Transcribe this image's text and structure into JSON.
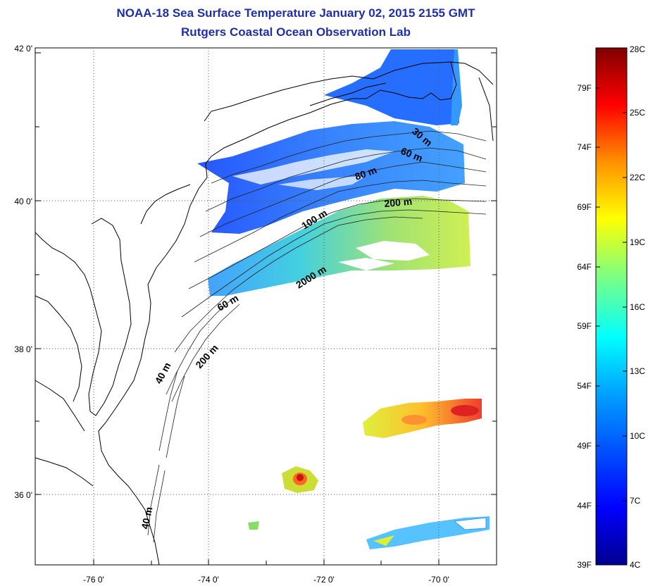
{
  "title": "NOAA-18 Sea Surface Temperature January 02, 2015 2155 GMT",
  "subtitle": "Rutgers Coastal Ocean Observation Lab",
  "axes": {
    "lat_labels": [
      "42 0'",
      "40 0'",
      "38 0'",
      "36 0'"
    ],
    "lon_labels": [
      "-76 0'",
      "-74 0'",
      "-72 0'",
      "-70 0'"
    ]
  },
  "contour_labels": [
    "30 m",
    "60 m",
    "80 m",
    "200 m",
    "100 m",
    "2000 m",
    "60 m",
    "40 m",
    "200 m",
    "40 m"
  ],
  "colorbar": {
    "celsius_labels": [
      "28C",
      "25C",
      "22C",
      "19C",
      "16C",
      "13C",
      "10C",
      "7C",
      "4C"
    ],
    "fahrenheit_labels": [
      "79F",
      "74F",
      "69F",
      "64F",
      "59F",
      "54F",
      "49F",
      "44F",
      "39F"
    ],
    "colors": [
      "#00008f",
      "#0000ff",
      "#0080ff",
      "#00ffff",
      "#80ff80",
      "#ffff00",
      "#ff8000",
      "#ff0000",
      "#800000"
    ]
  }
}
